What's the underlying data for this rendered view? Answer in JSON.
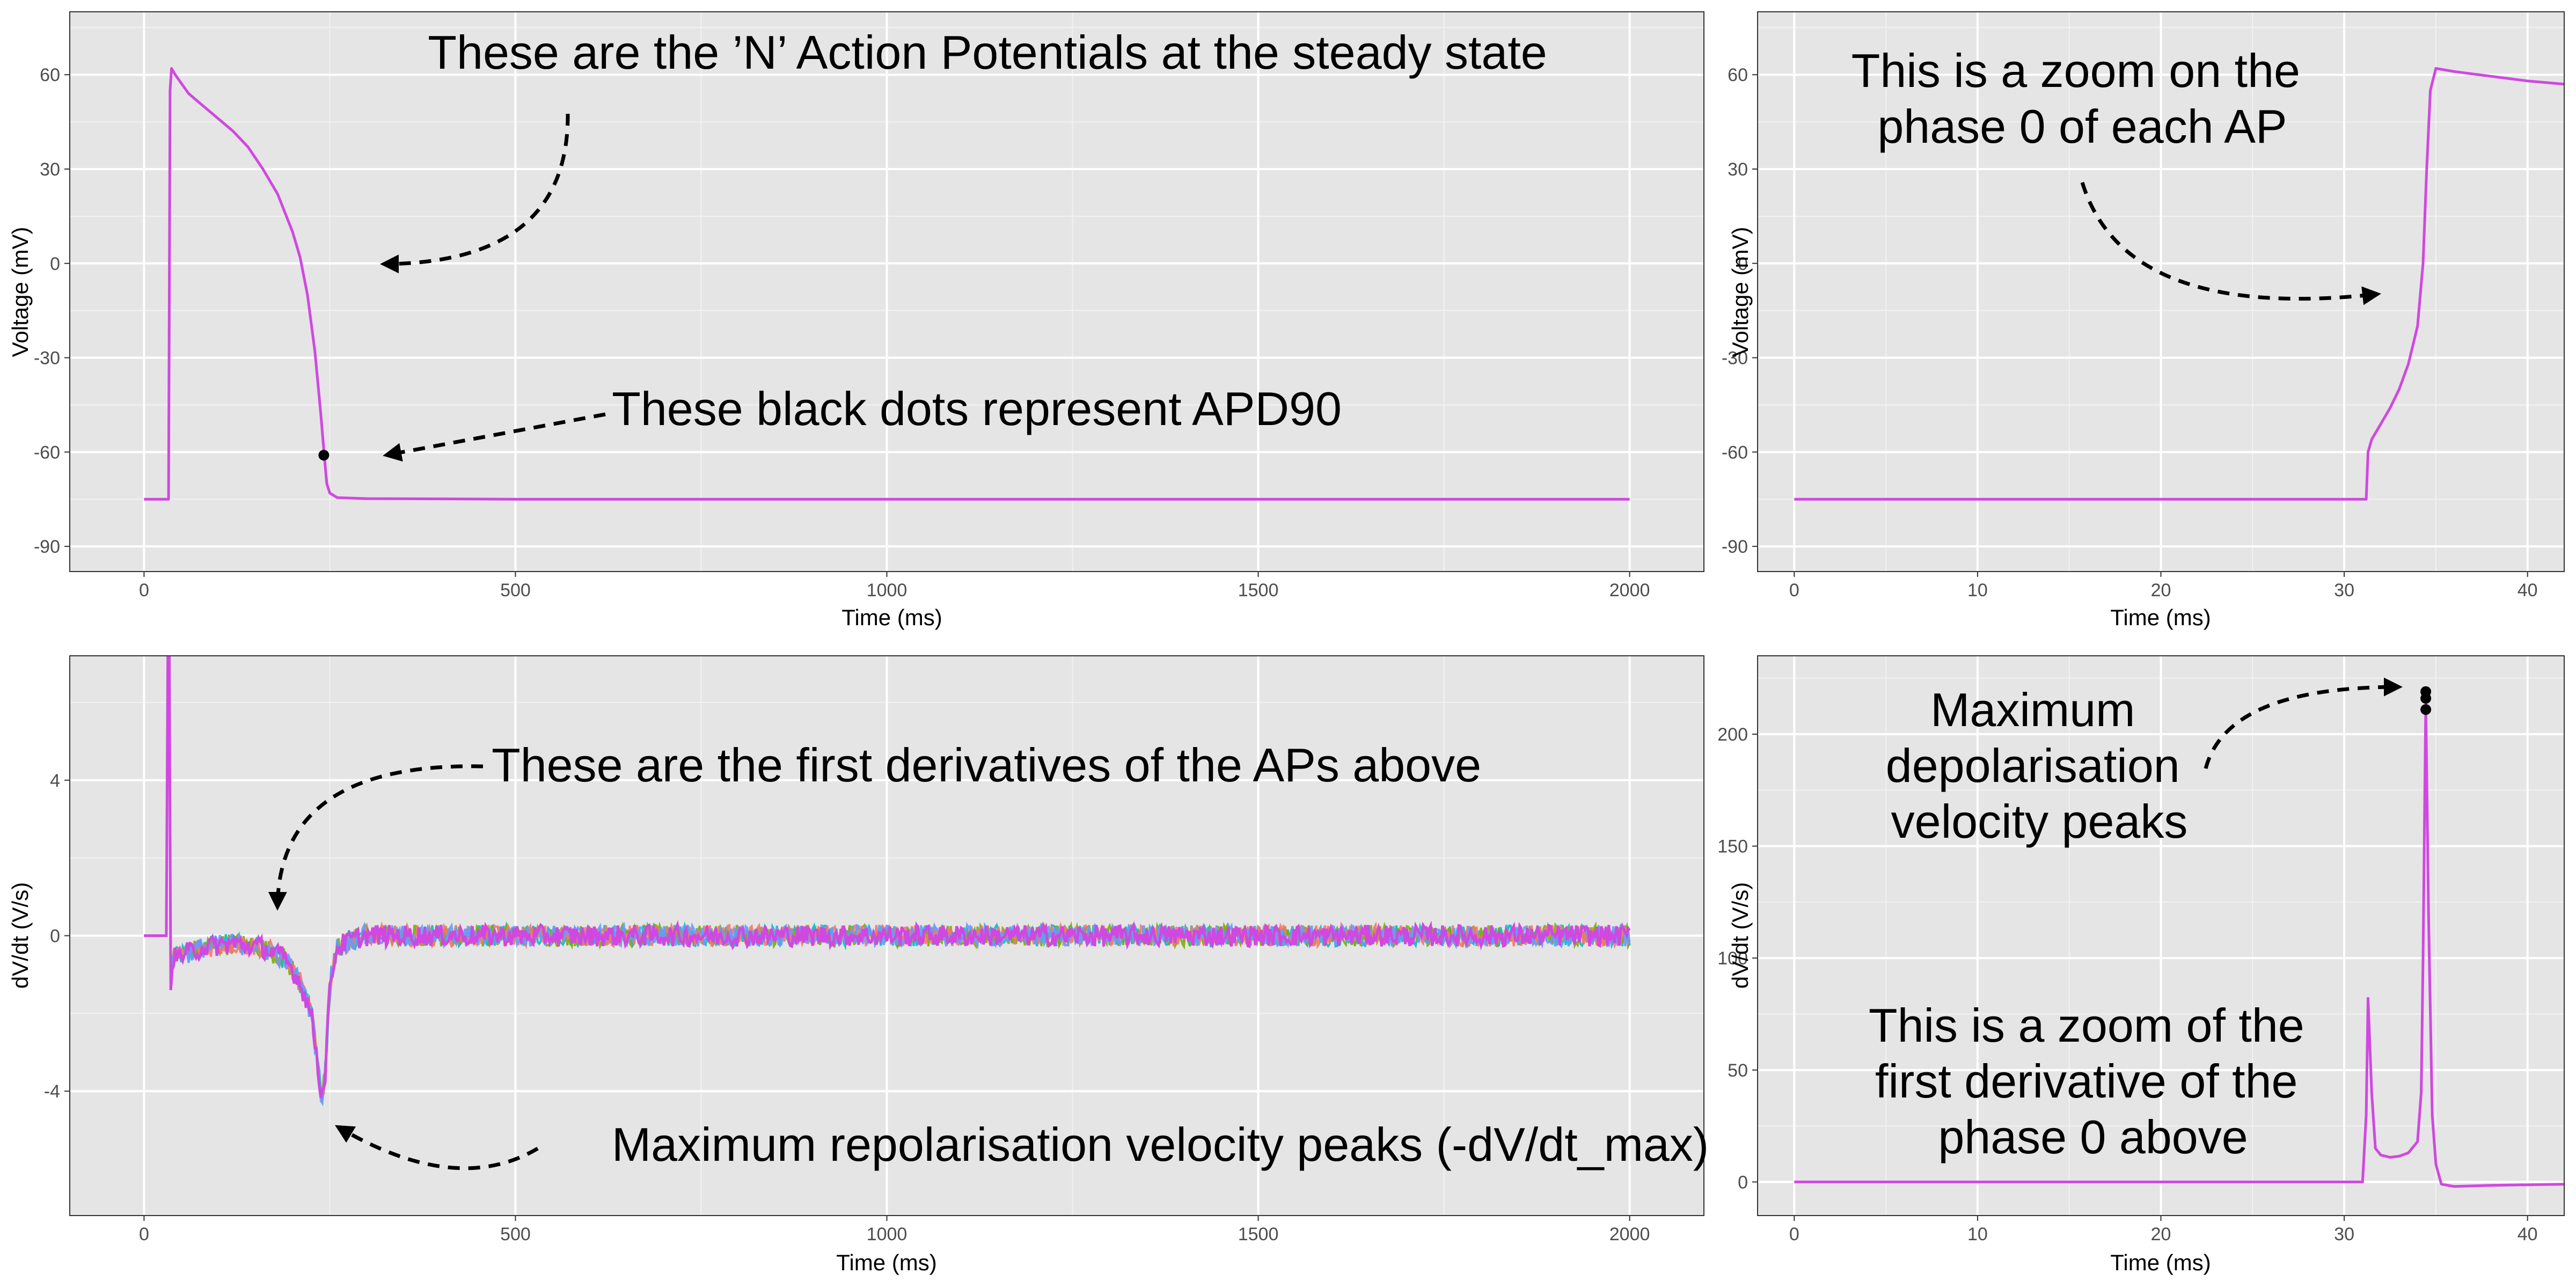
{
  "chart_data": [
    {
      "id": "ap_full",
      "type": "line",
      "title": "",
      "xlabel": "Time (ms)",
      "ylabel": "Voltage (mV)",
      "xlim": [
        -100,
        2100
      ],
      "ylim": [
        -98,
        80
      ],
      "xticks": [
        0,
        500,
        1000,
        1500,
        2000
      ],
      "xtick_labels": [
        "0",
        "500",
        "1000",
        "1500",
        "2000"
      ],
      "yticks": [
        -90,
        -60,
        -30,
        0,
        30,
        60
      ],
      "ytick_labels": [
        "-90",
        "-60",
        "-30",
        "0",
        "30",
        "60"
      ],
      "grid": true,
      "legend": "none",
      "series": [
        {
          "color": "#d048e0",
          "points": [
            [
              0,
              -75
            ],
            [
              30,
              -75
            ],
            [
              33,
              -75
            ],
            [
              35,
              55
            ],
            [
              37,
              62
            ],
            [
              42,
              60
            ],
            [
              60,
              54
            ],
            [
              80,
              50
            ],
            [
              100,
              46
            ],
            [
              120,
              42
            ],
            [
              140,
              37
            ],
            [
              160,
              30
            ],
            [
              180,
              22
            ],
            [
              200,
              10
            ],
            [
              210,
              2
            ],
            [
              220,
              -10
            ],
            [
              230,
              -28
            ],
            [
              238,
              -48
            ],
            [
              243,
              -62
            ],
            [
              246,
              -70
            ],
            [
              250,
              -73
            ],
            [
              260,
              -74.5
            ],
            [
              300,
              -74.8
            ],
            [
              500,
              -75
            ],
            [
              1000,
              -75
            ],
            [
              1500,
              -75
            ],
            [
              2000,
              -75
            ]
          ]
        }
      ],
      "markers": [
        {
          "x": 242,
          "y": -61,
          "color": "#000000"
        }
      ],
      "annotations": [
        {
          "lines": [
            "These are the ’N’ Action Potentials at the steady state"
          ]
        },
        {
          "lines": [
            "These black dots represent APD90"
          ]
        }
      ]
    },
    {
      "id": "ap_zoom",
      "type": "line",
      "title": "",
      "xlabel": "Time (ms)",
      "ylabel": "Voltage (mV)",
      "xlim": [
        -2,
        42
      ],
      "ylim": [
        -98,
        80
      ],
      "xticks": [
        0,
        10,
        20,
        30,
        40
      ],
      "xtick_labels": [
        "0",
        "10",
        "20",
        "30",
        "40"
      ],
      "yticks": [
        -90,
        -60,
        -30,
        0,
        30,
        60
      ],
      "ytick_labels": [
        "-90",
        "-60",
        "-30",
        "0",
        "30",
        "60"
      ],
      "grid": true,
      "legend": "none",
      "series": [
        {
          "color": "#d048e0",
          "points": [
            [
              0,
              -75
            ],
            [
              31.2,
              -75
            ],
            [
              31.3,
              -60
            ],
            [
              31.5,
              -56
            ],
            [
              32,
              -51
            ],
            [
              32.5,
              -46
            ],
            [
              33,
              -40
            ],
            [
              33.5,
              -32
            ],
            [
              34,
              -20
            ],
            [
              34.3,
              0
            ],
            [
              34.5,
              30
            ],
            [
              34.7,
              55
            ],
            [
              35,
              62
            ],
            [
              36,
              61
            ],
            [
              38,
              59.5
            ],
            [
              40,
              58
            ],
            [
              42,
              57
            ]
          ]
        }
      ],
      "markers": [],
      "annotations": [
        {
          "lines": [
            "This is a zoom on the",
            "phase 0 of each AP"
          ]
        }
      ]
    },
    {
      "id": "dvdt_full",
      "type": "line",
      "title": "",
      "xlabel": "Time (ms)",
      "ylabel": "dV/dt (V/s)",
      "xlim": [
        -100,
        2100
      ],
      "ylim": [
        -7.2,
        7.2
      ],
      "xticks": [
        0,
        500,
        1000,
        1500,
        2000
      ],
      "xtick_labels": [
        "0",
        "500",
        "1000",
        "1500",
        "2000"
      ],
      "yticks": [
        -4,
        0,
        4
      ],
      "ytick_labels": [
        "-4",
        "0",
        "4"
      ],
      "grid": true,
      "legend": "none",
      "noise_colors": [
        "#00bfc4",
        "#7cae00",
        "#f8766d",
        "#619cff"
      ],
      "series": [
        {
          "color": "#d048e0",
          "points": [
            [
              0,
              0
            ],
            [
              30,
              0
            ],
            [
              31,
              7.2
            ],
            [
              34,
              7.2
            ],
            [
              35,
              -1.8
            ],
            [
              38,
              -0.6
            ],
            [
              50,
              -0.5
            ],
            [
              80,
              -0.3
            ],
            [
              120,
              -0.2
            ],
            [
              160,
              -0.3
            ],
            [
              190,
              -0.6
            ],
            [
              210,
              -1.2
            ],
            [
              225,
              -2
            ],
            [
              232,
              -3
            ],
            [
              238,
              -4
            ],
            [
              240,
              -4.1
            ],
            [
              244,
              -3.5
            ],
            [
              248,
              -2
            ],
            [
              252,
              -1
            ],
            [
              260,
              -0.3
            ],
            [
              280,
              -0.1
            ],
            [
              300,
              0
            ],
            [
              2000,
              0
            ]
          ]
        }
      ],
      "markers": [],
      "annotations": [
        {
          "lines": [
            "These are the first derivatives of the APs above"
          ]
        },
        {
          "lines": [
            "Maximum repolarisation velocity peaks (-dV/dt_max)"
          ]
        }
      ]
    },
    {
      "id": "dvdt_zoom",
      "type": "line",
      "title": "",
      "xlabel": "Time (ms)",
      "ylabel": "dV/dt (V/s)",
      "xlim": [
        -2,
        42
      ],
      "ylim": [
        -15,
        235
      ],
      "xticks": [
        0,
        10,
        20,
        30,
        40
      ],
      "xtick_labels": [
        "0",
        "10",
        "20",
        "30",
        "40"
      ],
      "yticks": [
        0,
        50,
        100,
        150,
        200
      ],
      "ytick_labels": [
        "0",
        "50",
        "100",
        "150",
        "200"
      ],
      "grid": true,
      "legend": "none",
      "series": [
        {
          "color": "#d048e0",
          "points": [
            [
              0,
              0
            ],
            [
              31,
              0
            ],
            [
              31.2,
              30
            ],
            [
              31.3,
              82
            ],
            [
              31.5,
              40
            ],
            [
              31.7,
              15
            ],
            [
              32,
              12
            ],
            [
              32.5,
              11
            ],
            [
              33,
              11.5
            ],
            [
              33.5,
              13
            ],
            [
              34,
              18
            ],
            [
              34.2,
              40
            ],
            [
              34.3,
              100
            ],
            [
              34.45,
              215
            ],
            [
              34.6,
              120
            ],
            [
              34.8,
              30
            ],
            [
              35,
              8
            ],
            [
              35.3,
              -1
            ],
            [
              36,
              -2
            ],
            [
              38,
              -1.5
            ],
            [
              42,
              -1
            ]
          ]
        }
      ],
      "markers": [
        {
          "x": 34.45,
          "y": 211,
          "color": "#000000"
        },
        {
          "x": 34.45,
          "y": 216,
          "color": "#000000"
        },
        {
          "x": 34.45,
          "y": 219,
          "color": "#000000"
        }
      ],
      "annotations": [
        {
          "lines": [
            "Maximum",
            "depolarisation",
            "velocity peaks"
          ]
        },
        {
          "lines": [
            "This is a zoom of the",
            "first derivative of the",
            "phase 0 above"
          ]
        }
      ]
    }
  ]
}
